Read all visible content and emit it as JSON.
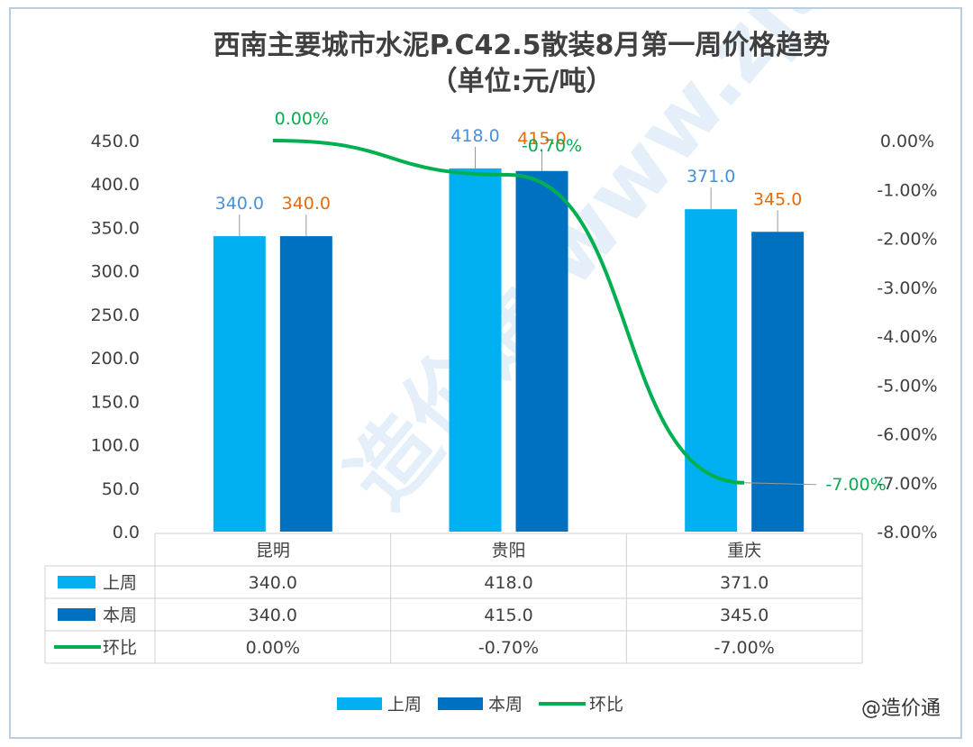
{
  "chart_data": {
    "type": "bar",
    "title": "西南主要城市水泥P.C42.5散装8月第一周价格趋势",
    "subtitle": "（单位:元/吨）",
    "categories": [
      "昆明",
      "贵阳",
      "重庆"
    ],
    "series": [
      {
        "name": "上周",
        "type": "bar",
        "axis": "left",
        "color": "#00b0f0",
        "values": [
          340.0,
          418.0,
          371.0
        ],
        "labels": [
          "340.0",
          "418.0",
          "371.0"
        ],
        "label_color": "#4a90d9"
      },
      {
        "name": "本周",
        "type": "bar",
        "axis": "left",
        "color": "#0070c0",
        "values": [
          340.0,
          415.0,
          345.0
        ],
        "labels": [
          "340.0",
          "415.0",
          "345.0"
        ],
        "label_color": "#e36c09"
      },
      {
        "name": "环比",
        "type": "line",
        "axis": "right",
        "color": "#00b050",
        "values": [
          0.0,
          -0.7,
          -7.0
        ],
        "labels": [
          "0.00%",
          "-0.70%",
          "-7.00%"
        ],
        "label_color": "#00b050"
      }
    ],
    "y_left": {
      "min": 0,
      "max": 450,
      "step": 50,
      "ticks": [
        "0.0",
        "50.0",
        "100.0",
        "150.0",
        "200.0",
        "250.0",
        "300.0",
        "350.0",
        "400.0",
        "450.0"
      ]
    },
    "y_right": {
      "min": -8,
      "max": 0,
      "step": 1,
      "ticks": [
        "0.00%",
        "-1.00%",
        "-2.00%",
        "-3.00%",
        "-4.00%",
        "-5.00%",
        "-6.00%",
        "-7.00%",
        "-8.00%"
      ]
    },
    "grid": false,
    "legend_position": "bottom",
    "data_table": true
  },
  "table": {
    "header": [
      "昆明",
      "贵阳",
      "重庆"
    ],
    "rows": [
      {
        "label": "上周",
        "cells": [
          "340.0",
          "418.0",
          "371.0"
        ]
      },
      {
        "label": "本周",
        "cells": [
          "340.0",
          "415.0",
          "345.0"
        ]
      },
      {
        "label": "环比",
        "cells": [
          "0.00%",
          "-0.70%",
          "-7.00%"
        ]
      }
    ]
  },
  "watermark": "@造价通",
  "background_watermark": "造价通 www.zjtcn.com"
}
